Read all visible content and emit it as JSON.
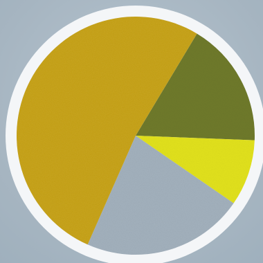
{
  "chart_data": {
    "type": "pie",
    "start_angle_deg": -59,
    "direction": "clockwise",
    "slices": [
      {
        "value": 17,
        "color": "#6f7a2c"
      },
      {
        "value": 9,
        "color": "#e2e21e"
      },
      {
        "value": 22,
        "color": "#a3b1bd"
      },
      {
        "value": 52,
        "color": "#c8a41a"
      }
    ],
    "legend": "none",
    "ring_color": "#f4f6f8"
  }
}
